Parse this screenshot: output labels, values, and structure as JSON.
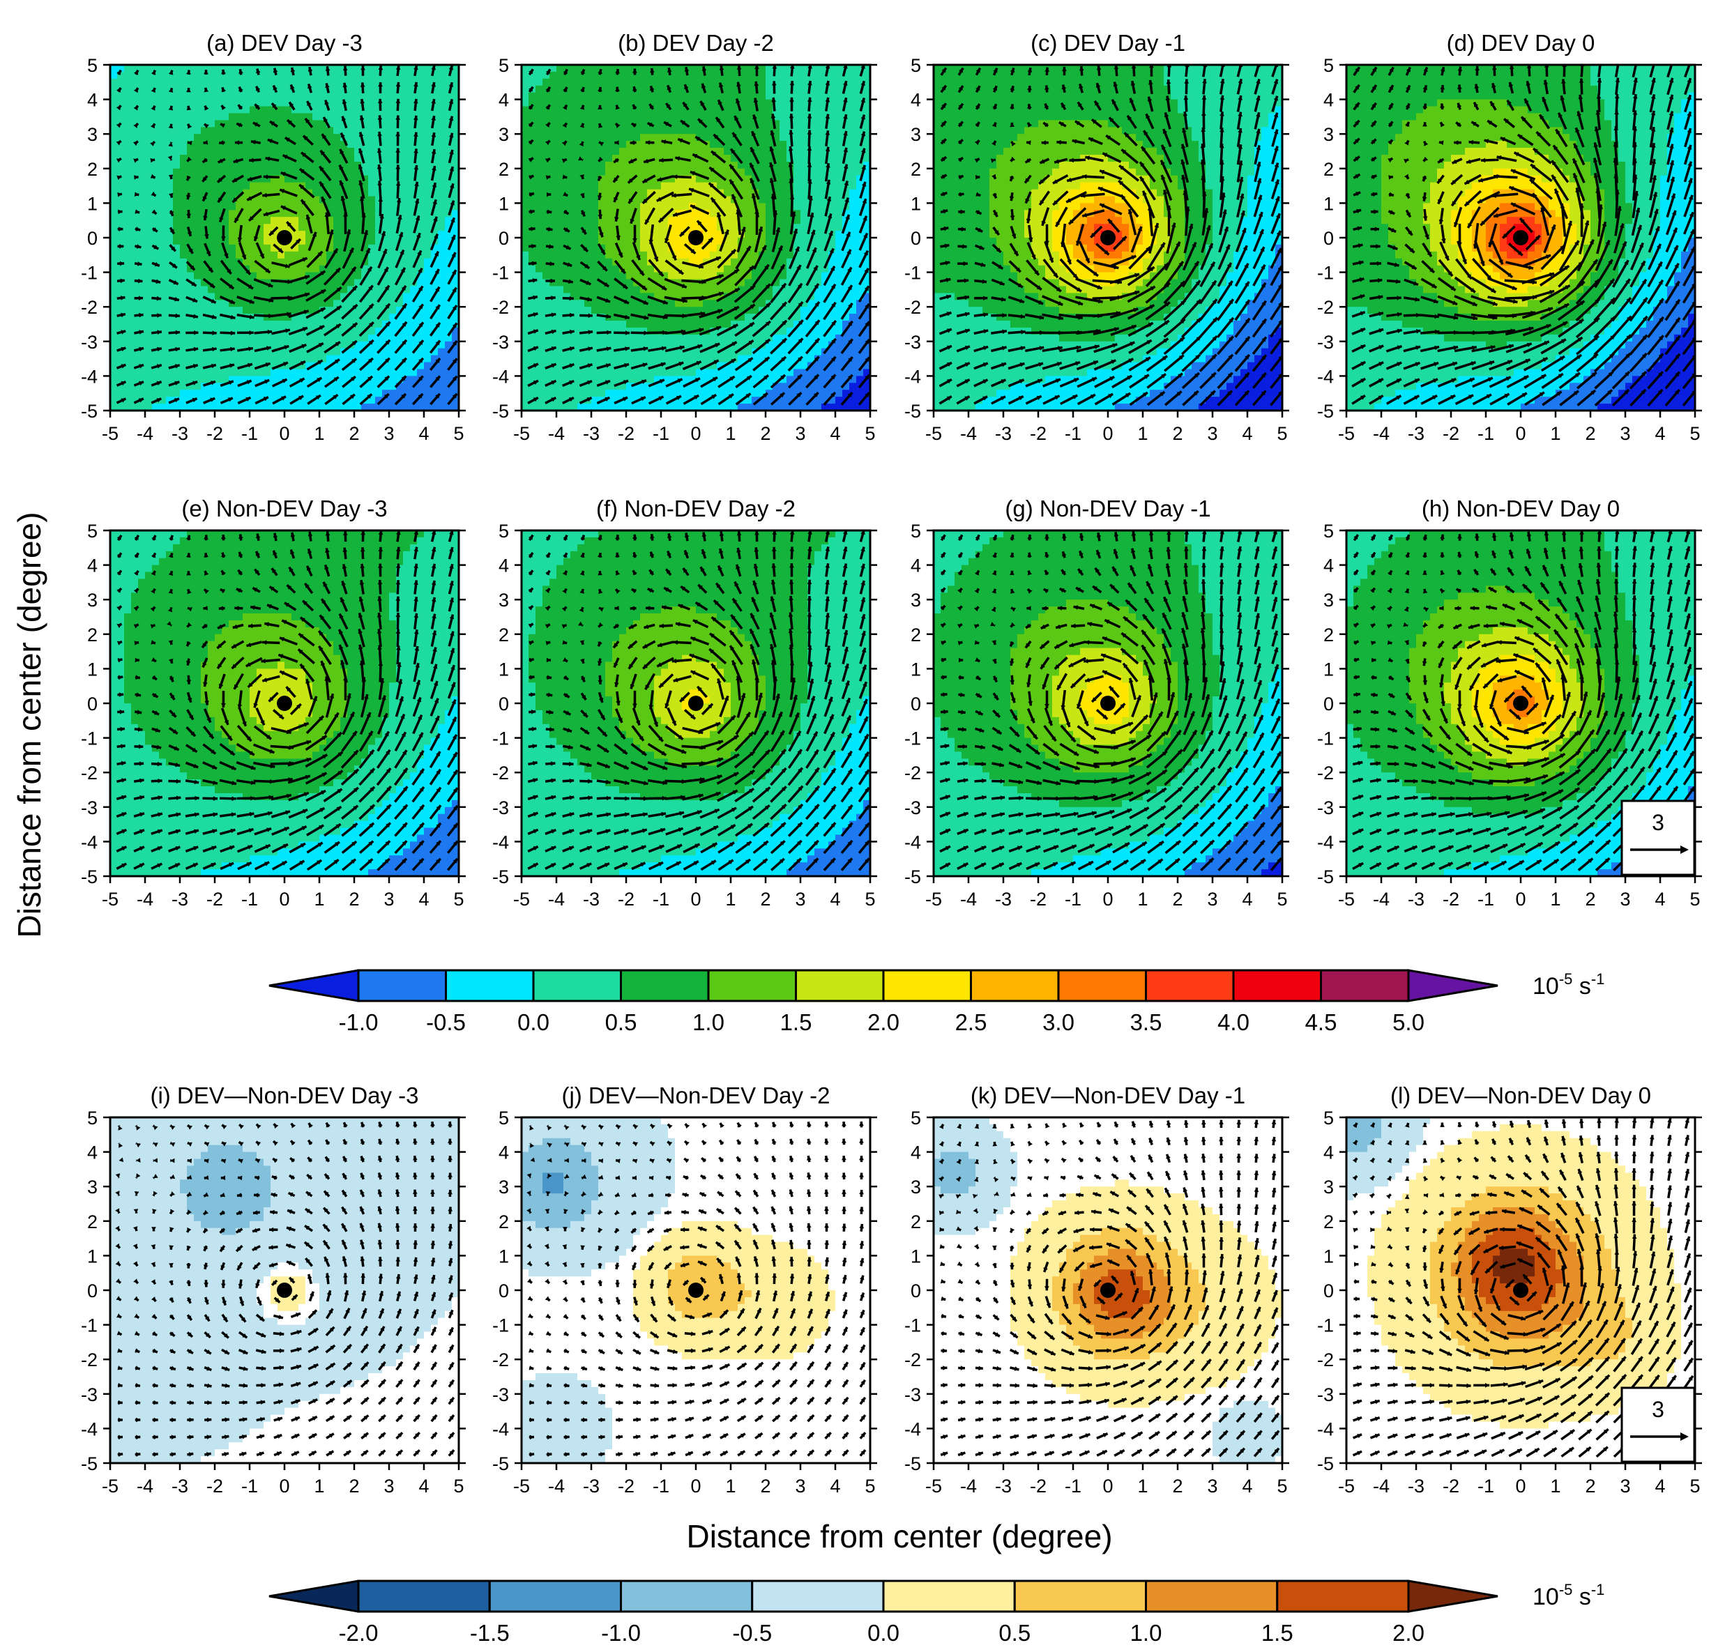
{
  "figure": {
    "x_axis_title": "Distance from center (degree)",
    "y_axis_title": "Distance from center (degree)",
    "unit_base": "10",
    "unit_exp": "-5",
    "unit_tail": " s",
    "unit_tail_exp": "-1"
  },
  "chart_data": {
    "type": "contour",
    "xlim": [
      -5,
      5
    ],
    "ylim": [
      -5,
      5
    ],
    "ticks": [
      -5,
      -4,
      -3,
      -2,
      -1,
      0,
      1,
      2,
      3,
      4,
      5
    ],
    "colorbar_top": {
      "levels": [
        "-1.0",
        "-0.5",
        "0.0",
        "0.5",
        "1.0",
        "1.5",
        "2.0",
        "2.5",
        "3.0",
        "3.5",
        "4.0",
        "4.5",
        "5.0"
      ],
      "colors": [
        "#0a1ee0",
        "#1e78f0",
        "#00e6ff",
        "#1edca0",
        "#14b43c",
        "#5ac814",
        "#c8e614",
        "#ffe600",
        "#ffb400",
        "#ff7800",
        "#ff3c14",
        "#f0000f",
        "#a01450",
        "#6414a0"
      ]
    },
    "colorbar_bottom": {
      "levels": [
        "-2.0",
        "-1.5",
        "-1.0",
        "-0.5",
        "0.0",
        "0.5",
        "1.0",
        "1.5",
        "2.0"
      ],
      "colors": [
        "#08285a",
        "#1e5fa0",
        "#4b96c8",
        "#82c0dc",
        "#c2e4f0",
        "#fff0a0",
        "#f8c850",
        "#e89028",
        "#c8500a",
        "#78280a"
      ]
    },
    "vector_ref": {
      "label": "3"
    },
    "panels": [
      {
        "label": "(a) DEV Day -3",
        "field": "full",
        "peak": 1.7,
        "bg": 0.2,
        "decay": 2.1,
        "grad": [
          -0.02,
          0.04
        ],
        "aniso": 0.6,
        "wind": 1.3,
        "ref_vector": false
      },
      {
        "label": "(b) DEV Day -2",
        "field": "full",
        "peak": 2.6,
        "bg": 0.2,
        "decay": 2.2,
        "grad": [
          -0.05,
          0.06
        ],
        "aniso": 0.45,
        "wind": 1.55,
        "ref_vector": false
      },
      {
        "label": "(c) DEV Day -1",
        "field": "full",
        "peak": 4.2,
        "bg": 0.1,
        "decay": 1.9,
        "grad": [
          -0.07,
          0.07
        ],
        "aniso": 0.25,
        "wind": 1.9,
        "ref_vector": false
      },
      {
        "label": "(d) DEV Day 0",
        "field": "full",
        "peak": 4.7,
        "bg": 0.05,
        "decay": 2.0,
        "grad": [
          -0.08,
          0.08
        ],
        "aniso": 0.2,
        "wind": 2.1,
        "ref_vector": false
      },
      {
        "label": "(e) Non-DEV Day -3",
        "field": "full",
        "peak": 1.8,
        "bg": 0.3,
        "decay": 2.4,
        "grad": [
          -0.03,
          0.05
        ],
        "aniso": 0.5,
        "wind": 1.45,
        "ref_vector": false
      },
      {
        "label": "(f) Non-DEV Day -2",
        "field": "full",
        "peak": 1.95,
        "bg": 0.3,
        "decay": 2.4,
        "grad": [
          -0.03,
          0.05
        ],
        "aniso": 0.5,
        "wind": 1.5,
        "ref_vector": false
      },
      {
        "label": "(g) Non-DEV Day -1",
        "field": "full",
        "peak": 2.4,
        "bg": 0.25,
        "decay": 2.3,
        "grad": [
          -0.04,
          0.05
        ],
        "aniso": 0.4,
        "wind": 1.55,
        "ref_vector": false
      },
      {
        "label": "(h) Non-DEV Day 0",
        "field": "full",
        "peak": 3.3,
        "bg": 0.25,
        "decay": 2.1,
        "grad": [
          -0.04,
          0.05
        ],
        "aniso": 0.35,
        "wind": 1.6,
        "ref_vector": true
      },
      {
        "label": "(i) DEV—Non-DEV  Day -3",
        "field": "diff",
        "ref_vector": false,
        "blobs": [
          [
            0.1,
            0.05,
            1.0,
            0.4
          ],
          [
            -1.8,
            3.0,
            1.2,
            -0.7
          ],
          [
            0.0,
            2.5,
            4.0,
            -0.35
          ],
          [
            -4.0,
            -2.0,
            2.5,
            -0.25
          ]
        ],
        "wind": 0.55
      },
      {
        "label": "(j) DEV—Non-DEV  Day -2",
        "field": "diff",
        "ref_vector": false,
        "blobs": [
          [
            0.1,
            0.1,
            1.2,
            0.9
          ],
          [
            2.2,
            -0.3,
            1.2,
            0.4
          ],
          [
            -4.2,
            3.0,
            1.3,
            -0.8
          ],
          [
            -3.5,
            3.5,
            2.2,
            -0.3
          ],
          [
            -4.0,
            -4.0,
            1.4,
            -0.2
          ]
        ],
        "wind": 0.55
      },
      {
        "label": "(k) DEV—Non-DEV  Day -1",
        "field": "diff",
        "ref_vector": false,
        "blobs": [
          [
            0.3,
            -0.1,
            1.7,
            1.7
          ],
          [
            2.5,
            -0.4,
            1.8,
            0.3
          ],
          [
            -4.4,
            3.4,
            1.1,
            -0.7
          ],
          [
            4.0,
            -4.2,
            0.8,
            -0.3
          ]
        ],
        "wind": 0.9
      },
      {
        "label": "(l) DEV—Non-DEV  Day 0",
        "field": "diff",
        "ref_vector": true,
        "blobs": [
          [
            0.0,
            0.4,
            2.3,
            1.8
          ],
          [
            -0.5,
            1.1,
            1.2,
            0.5
          ],
          [
            2.6,
            -1.4,
            1.3,
            0.4
          ],
          [
            -5.0,
            5.0,
            1.4,
            -0.9
          ]
        ],
        "wind": 1.25
      }
    ]
  }
}
